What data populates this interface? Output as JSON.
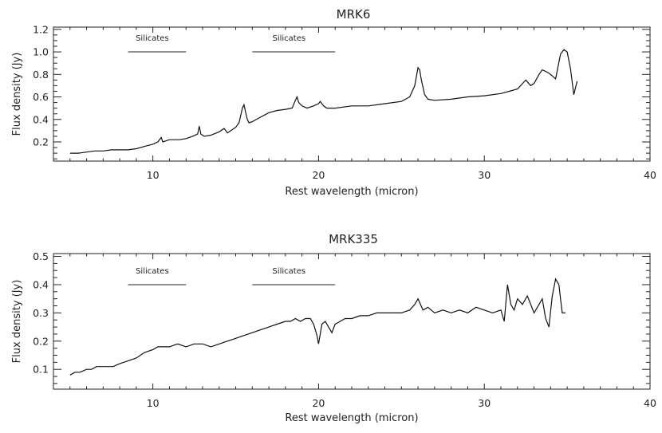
{
  "chart_data": [
    {
      "type": "line",
      "title": "MRK6",
      "xlabel": "Rest wavelength (micron)",
      "ylabel": "Flux density (Jy)",
      "xlim": [
        4,
        40
      ],
      "ylim": [
        0.03,
        1.22
      ],
      "xticks": [
        10,
        20,
        30,
        40
      ],
      "yticks": [
        0.2,
        0.4,
        0.6,
        0.8,
        1.0,
        1.2
      ],
      "ytick_labels": [
        "0.2",
        "0.4",
        "0.6",
        "0.8",
        "1.0",
        "1.2"
      ],
      "annotations": [
        {
          "text": "Silicates",
          "x_from": 8.5,
          "x_to": 12.0,
          "y": 1.0
        },
        {
          "text": "Silicates",
          "x_from": 16.0,
          "x_to": 21.0,
          "y": 1.0
        }
      ],
      "series": [
        {
          "x": [
            5.0,
            5.5,
            6.0,
            6.5,
            7.0,
            7.5,
            8.0,
            8.5,
            9.0,
            9.5,
            10.0,
            10.3,
            10.5,
            10.6,
            10.8,
            11.0,
            11.3,
            11.6,
            12.0,
            12.4,
            12.7,
            12.8,
            12.9,
            13.1,
            13.5,
            14.0,
            14.3,
            14.5,
            14.7,
            15.0,
            15.2,
            15.4,
            15.5,
            15.6,
            15.7,
            15.8,
            16.0,
            16.5,
            17.0,
            17.5,
            18.0,
            18.4,
            18.6,
            18.7,
            18.8,
            19.0,
            19.3,
            19.7,
            20.0,
            20.1,
            20.3,
            20.5,
            21.0,
            22.0,
            23.0,
            24.0,
            25.0,
            25.5,
            25.8,
            26.0,
            26.1,
            26.2,
            26.4,
            26.6,
            27.0,
            28.0,
            29.0,
            30.0,
            31.0,
            31.5,
            32.0,
            32.5,
            32.8,
            33.0,
            33.3,
            33.5,
            33.8,
            34.0,
            34.3,
            34.6,
            34.8,
            35.0,
            35.2,
            35.4,
            35.6
          ],
          "values": [
            0.1,
            0.1,
            0.11,
            0.12,
            0.12,
            0.13,
            0.13,
            0.13,
            0.14,
            0.16,
            0.18,
            0.2,
            0.24,
            0.2,
            0.21,
            0.22,
            0.22,
            0.22,
            0.23,
            0.25,
            0.27,
            0.34,
            0.27,
            0.25,
            0.26,
            0.29,
            0.32,
            0.28,
            0.3,
            0.33,
            0.37,
            0.5,
            0.53,
            0.46,
            0.4,
            0.37,
            0.38,
            0.42,
            0.46,
            0.48,
            0.49,
            0.5,
            0.57,
            0.6,
            0.55,
            0.52,
            0.5,
            0.52,
            0.54,
            0.56,
            0.52,
            0.5,
            0.5,
            0.52,
            0.52,
            0.54,
            0.56,
            0.6,
            0.7,
            0.86,
            0.84,
            0.75,
            0.62,
            0.58,
            0.57,
            0.58,
            0.6,
            0.61,
            0.63,
            0.65,
            0.67,
            0.75,
            0.7,
            0.72,
            0.8,
            0.84,
            0.82,
            0.8,
            0.76,
            0.98,
            1.02,
            1.0,
            0.85,
            0.62,
            0.74
          ]
        }
      ]
    },
    {
      "type": "line",
      "title": "MRK335",
      "xlabel": "Rest wavelength (micron)",
      "ylabel": "Flux density (Jy)",
      "xlim": [
        4,
        40
      ],
      "ylim": [
        0.03,
        0.51
      ],
      "xticks": [
        10,
        20,
        30,
        40
      ],
      "yticks": [
        0.1,
        0.2,
        0.3,
        0.4,
        0.5
      ],
      "ytick_labels": [
        "0.1",
        "0.2",
        "0.3",
        "0.4",
        "0.5"
      ],
      "annotations": [
        {
          "text": "Silicates",
          "x_from": 8.5,
          "x_to": 12.0,
          "y": 0.4
        },
        {
          "text": "Silicates",
          "x_from": 16.0,
          "x_to": 21.0,
          "y": 0.4
        }
      ],
      "series": [
        {
          "x": [
            5.0,
            5.3,
            5.6,
            6.0,
            6.3,
            6.6,
            7.0,
            7.3,
            7.6,
            8.0,
            8.5,
            9.0,
            9.5,
            10.0,
            10.3,
            10.6,
            11.0,
            11.5,
            12.0,
            12.5,
            13.0,
            13.5,
            14.0,
            14.5,
            15.0,
            15.5,
            16.0,
            16.5,
            17.0,
            17.5,
            18.0,
            18.3,
            18.6,
            18.9,
            19.2,
            19.5,
            19.7,
            19.9,
            20.0,
            20.2,
            20.4,
            20.6,
            20.8,
            21.0,
            21.3,
            21.6,
            22.0,
            22.5,
            23.0,
            23.5,
            24.0,
            24.5,
            25.0,
            25.5,
            25.8,
            26.0,
            26.3,
            26.6,
            27.0,
            27.5,
            28.0,
            28.5,
            29.0,
            29.5,
            30.0,
            30.5,
            31.0,
            31.2,
            31.4,
            31.6,
            31.8,
            32.0,
            32.3,
            32.6,
            33.0,
            33.3,
            33.5,
            33.7,
            33.9,
            34.1,
            34.3,
            34.5,
            34.7,
            34.9
          ],
          "values": [
            0.08,
            0.09,
            0.09,
            0.1,
            0.1,
            0.11,
            0.11,
            0.11,
            0.11,
            0.12,
            0.13,
            0.14,
            0.16,
            0.17,
            0.18,
            0.18,
            0.18,
            0.19,
            0.18,
            0.19,
            0.19,
            0.18,
            0.19,
            0.2,
            0.21,
            0.22,
            0.23,
            0.24,
            0.25,
            0.26,
            0.27,
            0.27,
            0.28,
            0.27,
            0.28,
            0.28,
            0.26,
            0.22,
            0.19,
            0.26,
            0.27,
            0.25,
            0.23,
            0.26,
            0.27,
            0.28,
            0.28,
            0.29,
            0.29,
            0.3,
            0.3,
            0.3,
            0.3,
            0.31,
            0.33,
            0.35,
            0.31,
            0.32,
            0.3,
            0.31,
            0.3,
            0.31,
            0.3,
            0.32,
            0.31,
            0.3,
            0.31,
            0.27,
            0.4,
            0.33,
            0.31,
            0.35,
            0.33,
            0.36,
            0.3,
            0.33,
            0.35,
            0.28,
            0.25,
            0.36,
            0.42,
            0.4,
            0.3,
            0.3
          ]
        }
      ]
    }
  ]
}
